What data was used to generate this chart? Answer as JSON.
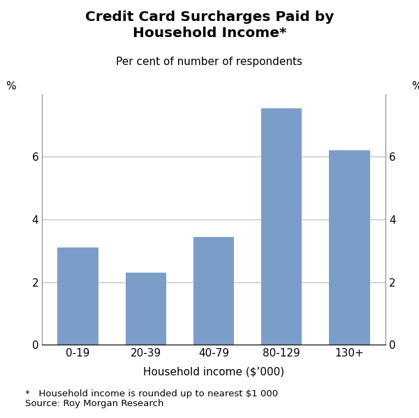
{
  "title_line1": "Credit Card Surcharges Paid by",
  "title_line2": "Household Income*",
  "subtitle": "Per cent of number of respondents",
  "categories": [
    "0-19",
    "20-39",
    "40-79",
    "80-129",
    "130+"
  ],
  "values": [
    3.1,
    2.3,
    3.45,
    7.55,
    6.2
  ],
  "bar_color": "#7b9ec8",
  "xlabel": "Household income ($’000)",
  "ylabel_left": "%",
  "ylabel_right": "%",
  "ylim": [
    0,
    8
  ],
  "yticks": [
    0,
    2,
    4,
    6
  ],
  "footnote1": "*   Household income is rounded up to nearest $1 000",
  "footnote2": "Source: Roy Morgan Research",
  "background_color": "#ffffff",
  "grid_color": "#bbbbbb",
  "title_fontsize": 14.5,
  "subtitle_fontsize": 11,
  "label_fontsize": 11,
  "tick_fontsize": 11,
  "footnote_fontsize": 9.5
}
